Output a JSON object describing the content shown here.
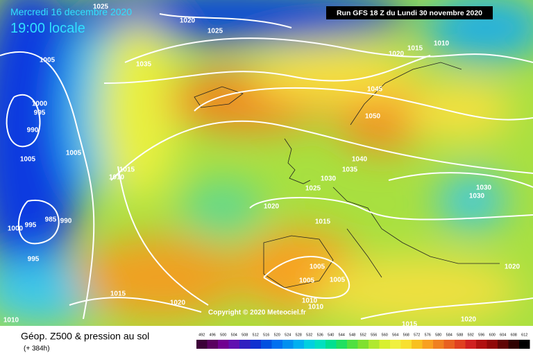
{
  "header": {
    "date": "Mercredi 16 decembre 2020",
    "time": "19:00 locale",
    "run": "Run GFS 18 Z du Lundi 30 novembre 2020"
  },
  "copyright": "Copyright © 2020 Meteociel.fr",
  "footer": {
    "title": "Géop. Z500 & pression au sol",
    "lead": "(+ 384h)"
  },
  "isobar_labels": [
    "1025",
    "1020",
    "1025",
    "1005",
    "1035",
    "1000",
    "995",
    "990",
    "1005",
    "1005",
    "1015",
    "1010",
    "1020",
    "1015",
    "1010",
    "1045",
    "1050",
    "1040",
    "1035",
    "1030",
    "1025",
    "1020",
    "1030",
    "1030",
    "985",
    "990",
    "995",
    "1000",
    "995",
    "1015",
    "1005",
    "1005",
    "1005",
    "1015",
    "1020",
    "1010",
    "1010",
    "1015",
    "1020",
    "1020",
    "1010"
  ],
  "scale": {
    "labels": [
      492,
      496,
      500,
      504,
      508,
      512,
      516,
      520,
      524,
      528,
      532,
      536,
      540,
      544,
      548,
      552,
      556,
      560,
      564,
      568,
      572,
      576,
      580,
      584,
      588,
      592,
      596,
      600,
      604,
      608,
      612
    ],
    "colors": [
      "#3c0038",
      "#5a0060",
      "#700090",
      "#6010b0",
      "#3020c0",
      "#1030d0",
      "#0050e0",
      "#0070f0",
      "#0090f0",
      "#00b0f0",
      "#00d0e0",
      "#00e0c0",
      "#00e090",
      "#20e060",
      "#50e040",
      "#80e030",
      "#b0e830",
      "#d8f030",
      "#f0f040",
      "#f8e030",
      "#f8c020",
      "#f8a020",
      "#f08020",
      "#e86020",
      "#e04020",
      "#d02020",
      "#b01010",
      "#900808",
      "#600404",
      "#300202",
      "#000000"
    ]
  }
}
